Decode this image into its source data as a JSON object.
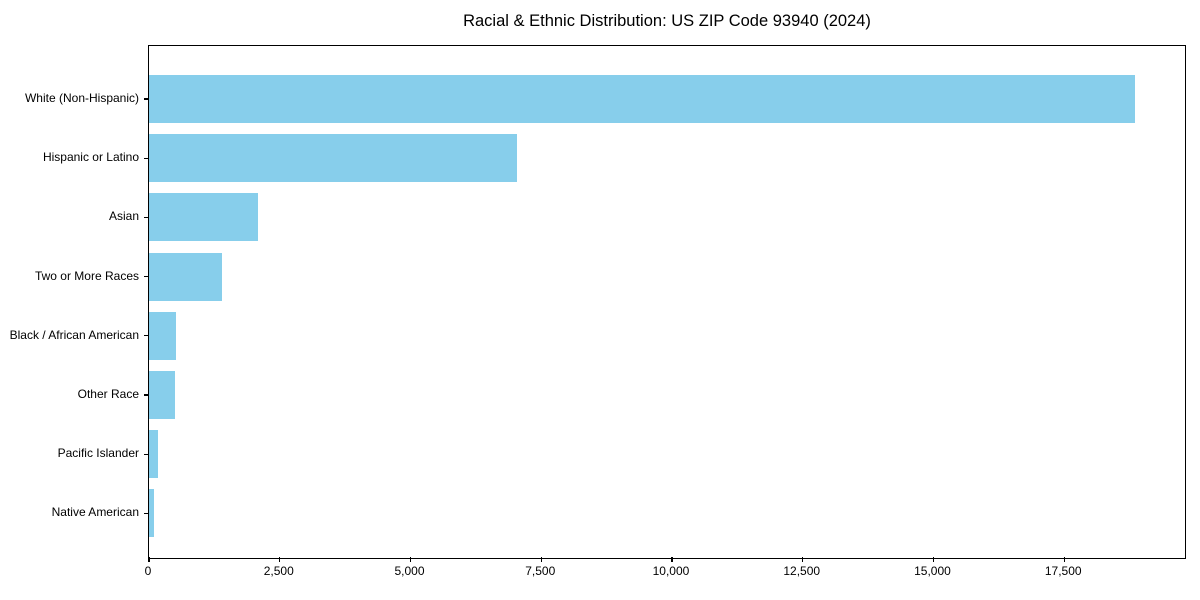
{
  "chart_data": {
    "type": "bar",
    "orientation": "horizontal",
    "title": "Racial & Ethnic Distribution: US ZIP Code 93940 (2024)",
    "categories": [
      "White (Non-Hispanic)",
      "Hispanic or Latino",
      "Asian",
      "Two or More Races",
      "Black / African American",
      "Other Race",
      "Pacific Islander",
      "Native American"
    ],
    "values": [
      18850,
      7040,
      2080,
      1400,
      520,
      500,
      170,
      95
    ],
    "bar_color": "#87CEEB",
    "background_color": "#ffffff",
    "spine_color": "#000000",
    "text_color": "#000000",
    "xlabel": "",
    "ylabel": "",
    "xlim": [
      0,
      19790
    ],
    "x_ticks": [
      0,
      2500,
      5000,
      7500,
      10000,
      12500,
      15000,
      17500
    ],
    "x_tick_labels": [
      "0",
      "2,500",
      "5,000",
      "7,500",
      "10,000",
      "12,500",
      "15,000",
      "17,500"
    ],
    "grid": false,
    "legend": null,
    "sorted": "descending"
  }
}
